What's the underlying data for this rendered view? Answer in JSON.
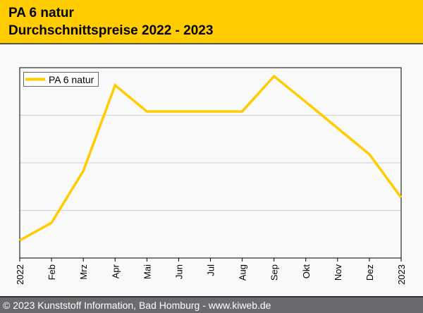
{
  "header": {
    "title": "PA 6 natur",
    "subtitle": "Durchschnittspreise 2022 - 2023"
  },
  "footer": {
    "text": "© 2023 Kunststoff Information, Bad Homburg - www.kiweb.de"
  },
  "colors": {
    "series": "#ffcc00",
    "header": "#ffcc00",
    "footer": "#6b6b6f"
  },
  "chart_data": {
    "type": "line",
    "title": "",
    "xlabel": "",
    "ylabel": "",
    "categories": [
      "2022",
      "Feb",
      "Mrz",
      "Apr",
      "Mai",
      "Jun",
      "Jul",
      "Aug",
      "Sep",
      "Okt",
      "Nov",
      "Dez",
      "2023"
    ],
    "series": [
      {
        "name": "PA 6 natur",
        "values": [
          0.37,
          0.74,
          1.83,
          3.63,
          3.08,
          3.08,
          3.08,
          3.08,
          3.82,
          3.28,
          2.73,
          2.18,
          1.27
        ]
      }
    ],
    "ylim": [
      0,
      4
    ],
    "y_gridlines": [
      1,
      2,
      3
    ],
    "y_units_note": "relative (no y-axis labels shown)",
    "grid": true,
    "legend": "top-left"
  }
}
